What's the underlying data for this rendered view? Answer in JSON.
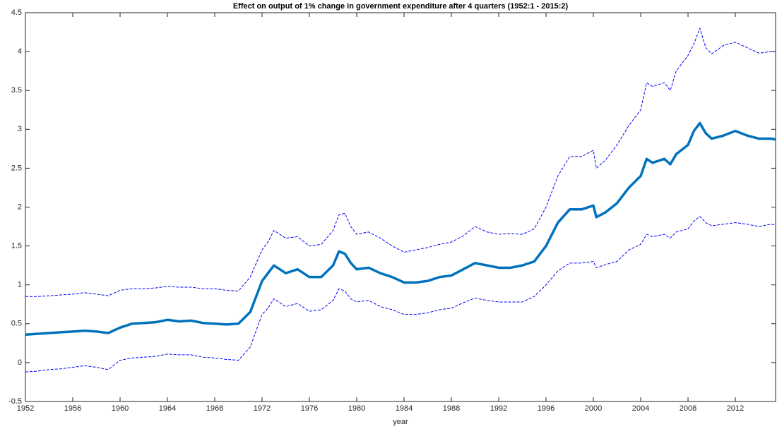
{
  "chart_data": {
    "type": "line",
    "title": "Effect on output of 1% change in government expenditure after 4 quarters (1952:1 - 2015:2)",
    "x_label": "year",
    "x": [
      1952,
      1953,
      1954,
      1955,
      1956,
      1957,
      1958,
      1959,
      1960,
      1961,
      1962,
      1963,
      1964,
      1965,
      1966,
      1967,
      1968,
      1969,
      1970,
      1971,
      1972,
      1972.5,
      1973,
      1974,
      1975,
      1976,
      1977,
      1978,
      1978.5,
      1979,
      1979.5,
      1980,
      1981,
      1982,
      1983,
      1984,
      1985,
      1986,
      1987,
      1988,
      1989,
      1990,
      1991,
      1992,
      1993,
      1994,
      1995,
      1996,
      1997,
      1998,
      1999,
      2000,
      2000.25,
      2001,
      2002,
      2003,
      2004,
      2004.5,
      2005,
      2006,
      2006.5,
      2007,
      2008,
      2008.5,
      2009,
      2009.5,
      2010,
      2011,
      2012,
      2013,
      2014,
      2015,
      2015.4
    ],
    "series": [
      {
        "color": "#0072bd",
        "style": "solid",
        "values": [
          0.36,
          0.37,
          0.38,
          0.39,
          0.4,
          0.41,
          0.4,
          0.38,
          0.45,
          0.5,
          0.51,
          0.52,
          0.55,
          0.53,
          0.54,
          0.51,
          0.5,
          0.49,
          0.5,
          0.65,
          1.05,
          1.15,
          1.25,
          1.15,
          1.2,
          1.1,
          1.1,
          1.25,
          1.43,
          1.4,
          1.28,
          1.2,
          1.22,
          1.15,
          1.1,
          1.03,
          1.03,
          1.05,
          1.1,
          1.12,
          1.2,
          1.28,
          1.25,
          1.22,
          1.22,
          1.25,
          1.3,
          1.5,
          1.8,
          1.97,
          1.97,
          2.02,
          1.87,
          1.93,
          2.05,
          2.25,
          2.4,
          2.62,
          2.57,
          2.62,
          2.55,
          2.68,
          2.8,
          2.98,
          3.08,
          2.95,
          2.88,
          2.92,
          2.98,
          2.92,
          2.88,
          2.88,
          2.87
        ]
      },
      {
        "color": "#0000ff",
        "style": "dashed",
        "values": [
          0.85,
          0.85,
          0.86,
          0.87,
          0.88,
          0.9,
          0.88,
          0.86,
          0.93,
          0.95,
          0.95,
          0.96,
          0.98,
          0.97,
          0.97,
          0.95,
          0.95,
          0.93,
          0.92,
          1.1,
          1.45,
          1.55,
          1.7,
          1.6,
          1.62,
          1.5,
          1.52,
          1.7,
          1.9,
          1.92,
          1.75,
          1.65,
          1.68,
          1.6,
          1.5,
          1.42,
          1.45,
          1.48,
          1.52,
          1.55,
          1.63,
          1.75,
          1.68,
          1.65,
          1.66,
          1.65,
          1.72,
          2.0,
          2.4,
          2.65,
          2.65,
          2.73,
          2.5,
          2.6,
          2.8,
          3.05,
          3.25,
          3.6,
          3.55,
          3.6,
          3.5,
          3.75,
          3.95,
          4.1,
          4.3,
          4.05,
          3.97,
          4.08,
          4.12,
          4.05,
          3.98,
          4.0,
          4.0
        ]
      },
      {
        "color": "#0000ff",
        "style": "dashed",
        "values": [
          -0.12,
          -0.11,
          -0.09,
          -0.08,
          -0.06,
          -0.04,
          -0.06,
          -0.09,
          0.03,
          0.06,
          0.07,
          0.08,
          0.11,
          0.1,
          0.1,
          0.07,
          0.06,
          0.04,
          0.03,
          0.2,
          0.62,
          0.7,
          0.82,
          0.72,
          0.76,
          0.66,
          0.68,
          0.8,
          0.95,
          0.92,
          0.82,
          0.78,
          0.8,
          0.72,
          0.68,
          0.62,
          0.62,
          0.64,
          0.68,
          0.7,
          0.77,
          0.83,
          0.8,
          0.78,
          0.78,
          0.78,
          0.85,
          1.0,
          1.18,
          1.28,
          1.28,
          1.3,
          1.22,
          1.26,
          1.3,
          1.45,
          1.52,
          1.65,
          1.62,
          1.65,
          1.6,
          1.68,
          1.72,
          1.82,
          1.88,
          1.8,
          1.76,
          1.78,
          1.8,
          1.78,
          1.75,
          1.78,
          1.77
        ]
      }
    ],
    "xlim": [
      1952,
      2015.4
    ],
    "xticks": [
      1952,
      1956,
      1960,
      1964,
      1968,
      1972,
      1976,
      1980,
      1984,
      1988,
      1992,
      1996,
      2000,
      2004,
      2008,
      2012
    ],
    "ylim": [
      -0.5,
      4.5
    ],
    "yticks": [
      -0.5,
      0,
      0.5,
      1,
      1.5,
      2,
      2.5,
      3,
      3.5,
      4,
      4.5
    ],
    "grid": false
  }
}
